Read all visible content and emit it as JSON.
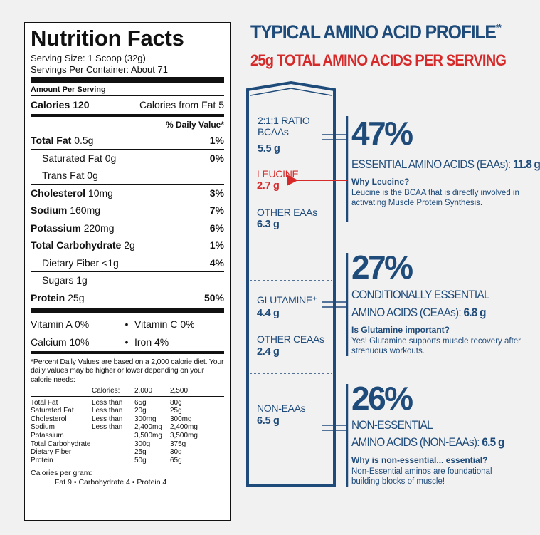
{
  "nutrition": {
    "title": "Nutrition Facts",
    "serving_size": "Serving Size: 1 Scoop (32g)",
    "servings_per_container": "Servings Per Container: About 71",
    "amount_per_serving": "Amount Per Serving",
    "calories_label": "Calories 120",
    "calories_fat": "Calories from Fat 5",
    "dv_header": "% Daily Value*",
    "nutrients": [
      {
        "name": "Total Fat",
        "amount": "0.5g",
        "dv": "1%",
        "bold": true
      },
      {
        "name": "Saturated Fat",
        "amount": "0g",
        "dv": "0%",
        "bold": false
      },
      {
        "name": "Trans Fat",
        "amount": "0g",
        "dv": "",
        "bold": false
      },
      {
        "name": "Cholesterol",
        "amount": "10mg",
        "dv": "3%",
        "bold": true
      },
      {
        "name": "Sodium",
        "amount": "160mg",
        "dv": "7%",
        "bold": true
      },
      {
        "name": "Potassium",
        "amount": "220mg",
        "dv": "6%",
        "bold": true
      },
      {
        "name": "Total Carbohydrate",
        "amount": "2g",
        "dv": "1%",
        "bold": true
      },
      {
        "name": "Dietary Fiber",
        "amount": "<1g",
        "dv": "4%",
        "bold": false
      },
      {
        "name": "Sugars",
        "amount": "1g",
        "dv": "",
        "bold": false
      },
      {
        "name": "Protein",
        "amount": "25g",
        "dv": "50%",
        "bold": true
      }
    ],
    "vitamins": [
      [
        "Vitamin A 0%",
        "Vitamin C 0%"
      ],
      [
        "Calcium 10%",
        "Iron 4%"
      ]
    ],
    "footnote": "*Percent Daily Values are based on a 2,000 calorie diet. Your daily values may be higher or lower depending on your calorie needs:",
    "dv_table": {
      "header": [
        "",
        "Calories:",
        "2,000",
        "2,500"
      ],
      "rows": [
        [
          "Total Fat",
          "Less than",
          "65g",
          "80g"
        ],
        [
          "Saturated Fat",
          "Less than",
          "20g",
          "25g"
        ],
        [
          "Cholesterol",
          "Less than",
          "300mg",
          "300mg"
        ],
        [
          "Sodium",
          "Less than",
          "2,400mg",
          "2,400mg"
        ],
        [
          "Potassium",
          "",
          "3,500mg",
          "3,500mg"
        ],
        [
          "Total Carbohydrate",
          "",
          "300g",
          "375g"
        ],
        [
          "Dietary Fiber",
          "",
          "25g",
          "30g"
        ],
        [
          "Protein",
          "",
          "50g",
          "65g"
        ]
      ]
    },
    "calories_per_gram_label": "Calories per gram:",
    "calories_per_gram": "Fat 9  •  Carbohydrate 4  •  Protein 4"
  },
  "amino": {
    "title": "TYPICAL AMINO ACID PROFILE",
    "title_mark": "**",
    "subtitle": "25g TOTAL AMINO ACIDS PER SERVING",
    "column": {
      "ratio_line1": "2:1:1 RATIO",
      "ratio_line2": "BCAAs",
      "ratio_value": "5.5 g",
      "leucine_label": "LEUCINE",
      "leucine_value": "2.7 g",
      "other_eaas_label": "OTHER EAAs",
      "other_eaas_value": "6.3 g",
      "glutamine_label": "GLUTAMINE⁺",
      "glutamine_value": "4.4 g",
      "other_ceaas_label": "OTHER CEAAs",
      "other_ceaas_value": "2.4 g",
      "non_eaas_label": "NON-EAAs",
      "non_eaas_value": "6.5 g"
    },
    "sections": [
      {
        "percent": "47%",
        "desc_line1": "ESSENTIAL AMINO ACIDS (EAAs):",
        "desc_value": "11.8 g",
        "desc_line2": "",
        "question": "Why Leucine?",
        "answer": "Leucine is the BCAA that is directly involved in activating Muscle Protein Synthesis."
      },
      {
        "percent": "27%",
        "desc_line1": "CONDITIONALLY ESSENTIAL",
        "desc_line2": "AMINO ACIDS (CEAAs):",
        "desc_value": "6.8 g",
        "question": "Is Glutamine important?",
        "answer": "Yes! Glutamine supports muscle recovery after strenuous workouts."
      },
      {
        "percent": "26%",
        "desc_line1": "NON-ESSENTIAL",
        "desc_line2": "AMINO ACIDS (NON-EAAs):",
        "desc_value": "6.5 g",
        "question_prefix": "Why is non-essential...",
        "question_link": "essential",
        "question_suffix": "?",
        "answer": "Non-Essential aminos are foundational building blocks of muscle!"
      }
    ],
    "colors": {
      "navy": "#1f4b7a",
      "red": "#d62a2a"
    }
  }
}
